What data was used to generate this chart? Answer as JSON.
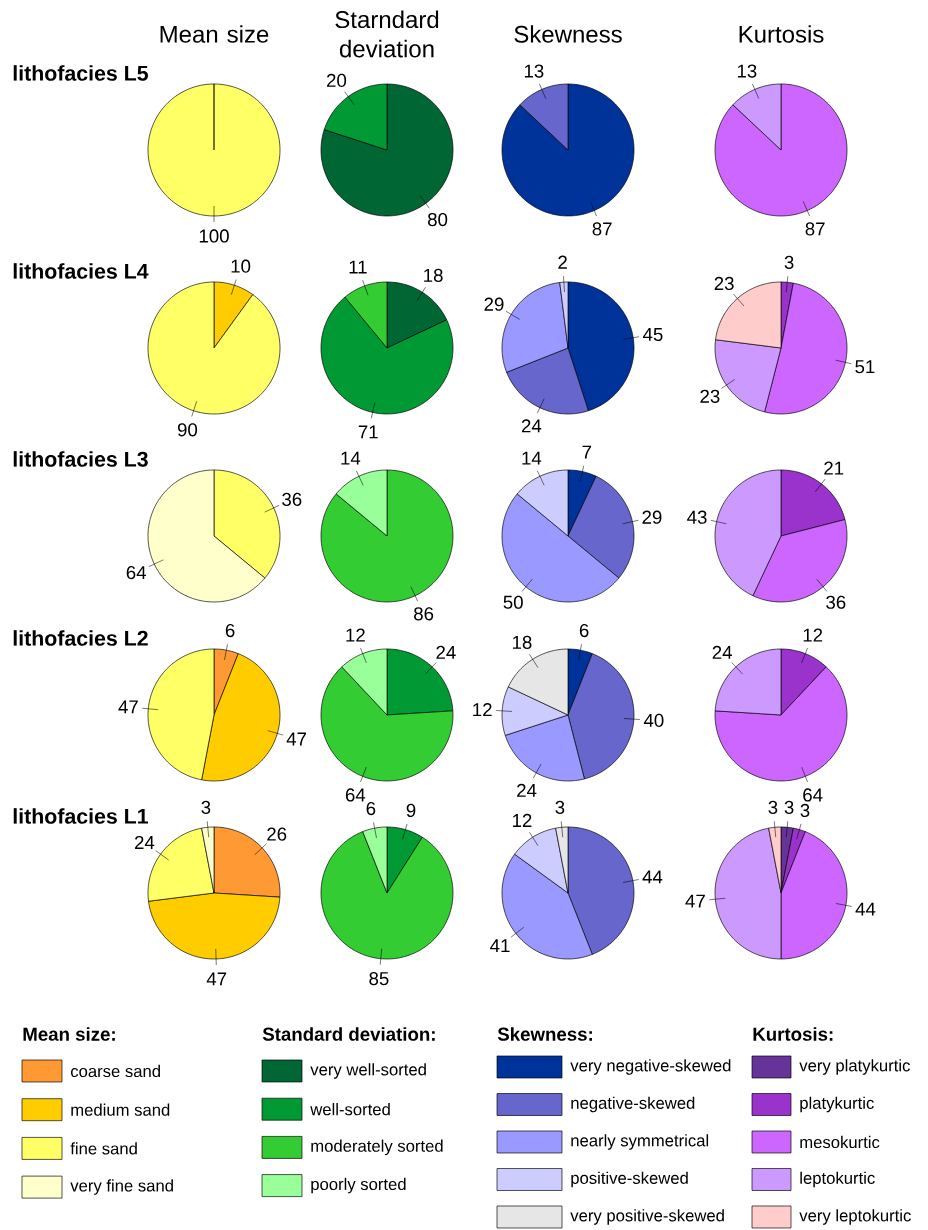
{
  "chart_data": [
    {
      "type": "pie",
      "title": "Mean size",
      "legend_title": "Mean size:",
      "legend": "bottom",
      "data_labels": true,
      "categories": [
        "coarse sand",
        "medium sand",
        "fine sand",
        "very fine sand"
      ],
      "colors": [
        "#ff9933",
        "#ffcc00",
        "#ffff66",
        "#ffffcc"
      ],
      "series": [
        {
          "name": "lithofacies L5",
          "values": [
            null,
            null,
            100,
            null
          ]
        },
        {
          "name": "lithofacies L4",
          "values": [
            null,
            10,
            90,
            null
          ]
        },
        {
          "name": "lithofacies L3",
          "values": [
            null,
            null,
            36,
            64
          ]
        },
        {
          "name": "lithofacies L2",
          "values": [
            6,
            47,
            47,
            null
          ]
        },
        {
          "name": "lithofacies L1",
          "values": [
            26,
            47,
            24,
            3
          ]
        }
      ]
    },
    {
      "type": "pie",
      "title": "Starndard deviation",
      "legend_title": "Standard deviation:",
      "legend": "bottom",
      "data_labels": true,
      "categories": [
        "very well-sorted",
        "well-sorted",
        "moderately sorted",
        "poorly sorted"
      ],
      "colors": [
        "#006633",
        "#009933",
        "#33cc33",
        "#99ff99"
      ],
      "series": [
        {
          "values": [
            80,
            20,
            null,
            null
          ]
        },
        {
          "values": [
            18,
            71,
            11,
            null
          ]
        },
        {
          "values": [
            null,
            null,
            86,
            14
          ]
        },
        {
          "values": [
            null,
            24,
            64,
            12
          ]
        },
        {
          "values": [
            null,
            9,
            85,
            6
          ]
        }
      ]
    },
    {
      "type": "pie",
      "title": "Skewness",
      "legend_title": "Skewness:",
      "legend": "bottom",
      "data_labels": true,
      "categories": [
        "very negative-skewed",
        "negative-skewed",
        "nearly symmetrical",
        "positive-skewed",
        "very positive-skewed"
      ],
      "colors": [
        "#003399",
        "#6666cc",
        "#9999ff",
        "#ccccff",
        "#e6e6e6"
      ],
      "series": [
        {
          "values": [
            87,
            13,
            null,
            null,
            null
          ]
        },
        {
          "values": [
            45,
            24,
            29,
            2,
            null
          ]
        },
        {
          "values": [
            7,
            29,
            50,
            14,
            null
          ]
        },
        {
          "values": [
            6,
            40,
            24,
            12,
            18
          ]
        },
        {
          "values": [
            null,
            44,
            41,
            12,
            3
          ]
        }
      ]
    },
    {
      "type": "pie",
      "title": "Kurtosis",
      "legend_title": "Kurtosis:",
      "legend": "bottom",
      "data_labels": true,
      "categories": [
        "very platykurtic",
        "platykurtic",
        "mesokurtic",
        "leptokurtic",
        "very leptokurtic"
      ],
      "colors": [
        "#663399",
        "#9933cc",
        "#cc66ff",
        "#cc99ff",
        "#ffcccc"
      ],
      "series": [
        {
          "values": [
            null,
            null,
            87,
            13,
            null
          ]
        },
        {
          "values": [
            null,
            3,
            51,
            23,
            23
          ]
        },
        {
          "values": [
            null,
            21,
            36,
            43,
            null
          ]
        },
        {
          "values": [
            null,
            12,
            64,
            24,
            null
          ]
        },
        {
          "values": [
            3,
            3,
            44,
            47,
            3
          ]
        }
      ]
    }
  ]
}
